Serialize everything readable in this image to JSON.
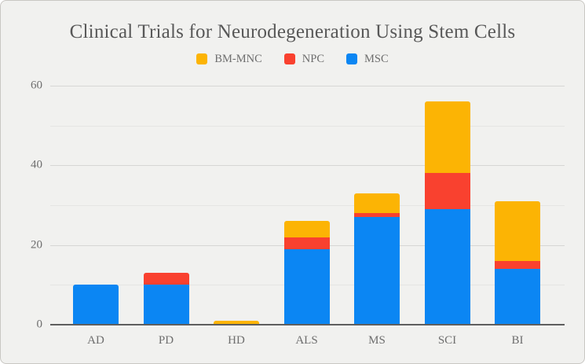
{
  "chart_data": {
    "type": "bar",
    "stacked": true,
    "title": "Clinical Trials for Neurodegeneration Using Stem Cells",
    "categories": [
      "AD",
      "PD",
      "HD",
      "ALS",
      "MS",
      "SCI",
      "BI"
    ],
    "series": [
      {
        "name": "MSC",
        "color": "#0B86F3",
        "values": [
          10,
          10,
          0,
          19,
          27,
          29,
          14
        ]
      },
      {
        "name": "NPC",
        "color": "#F9412F",
        "values": [
          0,
          3,
          0,
          3,
          1,
          9,
          2
        ]
      },
      {
        "name": "BM-MNC",
        "color": "#FCB404",
        "values": [
          0,
          0,
          1,
          4,
          5,
          18,
          15
        ]
      }
    ],
    "totals": [
      10,
      13,
      1,
      26,
      33,
      56,
      31
    ],
    "legend_order": [
      "BM-MNC",
      "NPC",
      "MSC"
    ],
    "legend_position": "top",
    "xlabel": "",
    "ylabel": "",
    "ylim": [
      0,
      60
    ],
    "ytick_step": 10,
    "ytick_label_step": 20,
    "ytick_labels": [
      "0",
      "20",
      "40",
      "60"
    ],
    "grid": true
  },
  "style": {
    "background": "#F1F1EF",
    "border_color": "#C9C7C3",
    "title_color": "#585858",
    "axis_label_color": "#6E6E6E",
    "gridline_minor_color": "#E5E5E3",
    "gridline_major_color": "#D6D6D4",
    "axis_line_color": "#5E5E5E"
  }
}
